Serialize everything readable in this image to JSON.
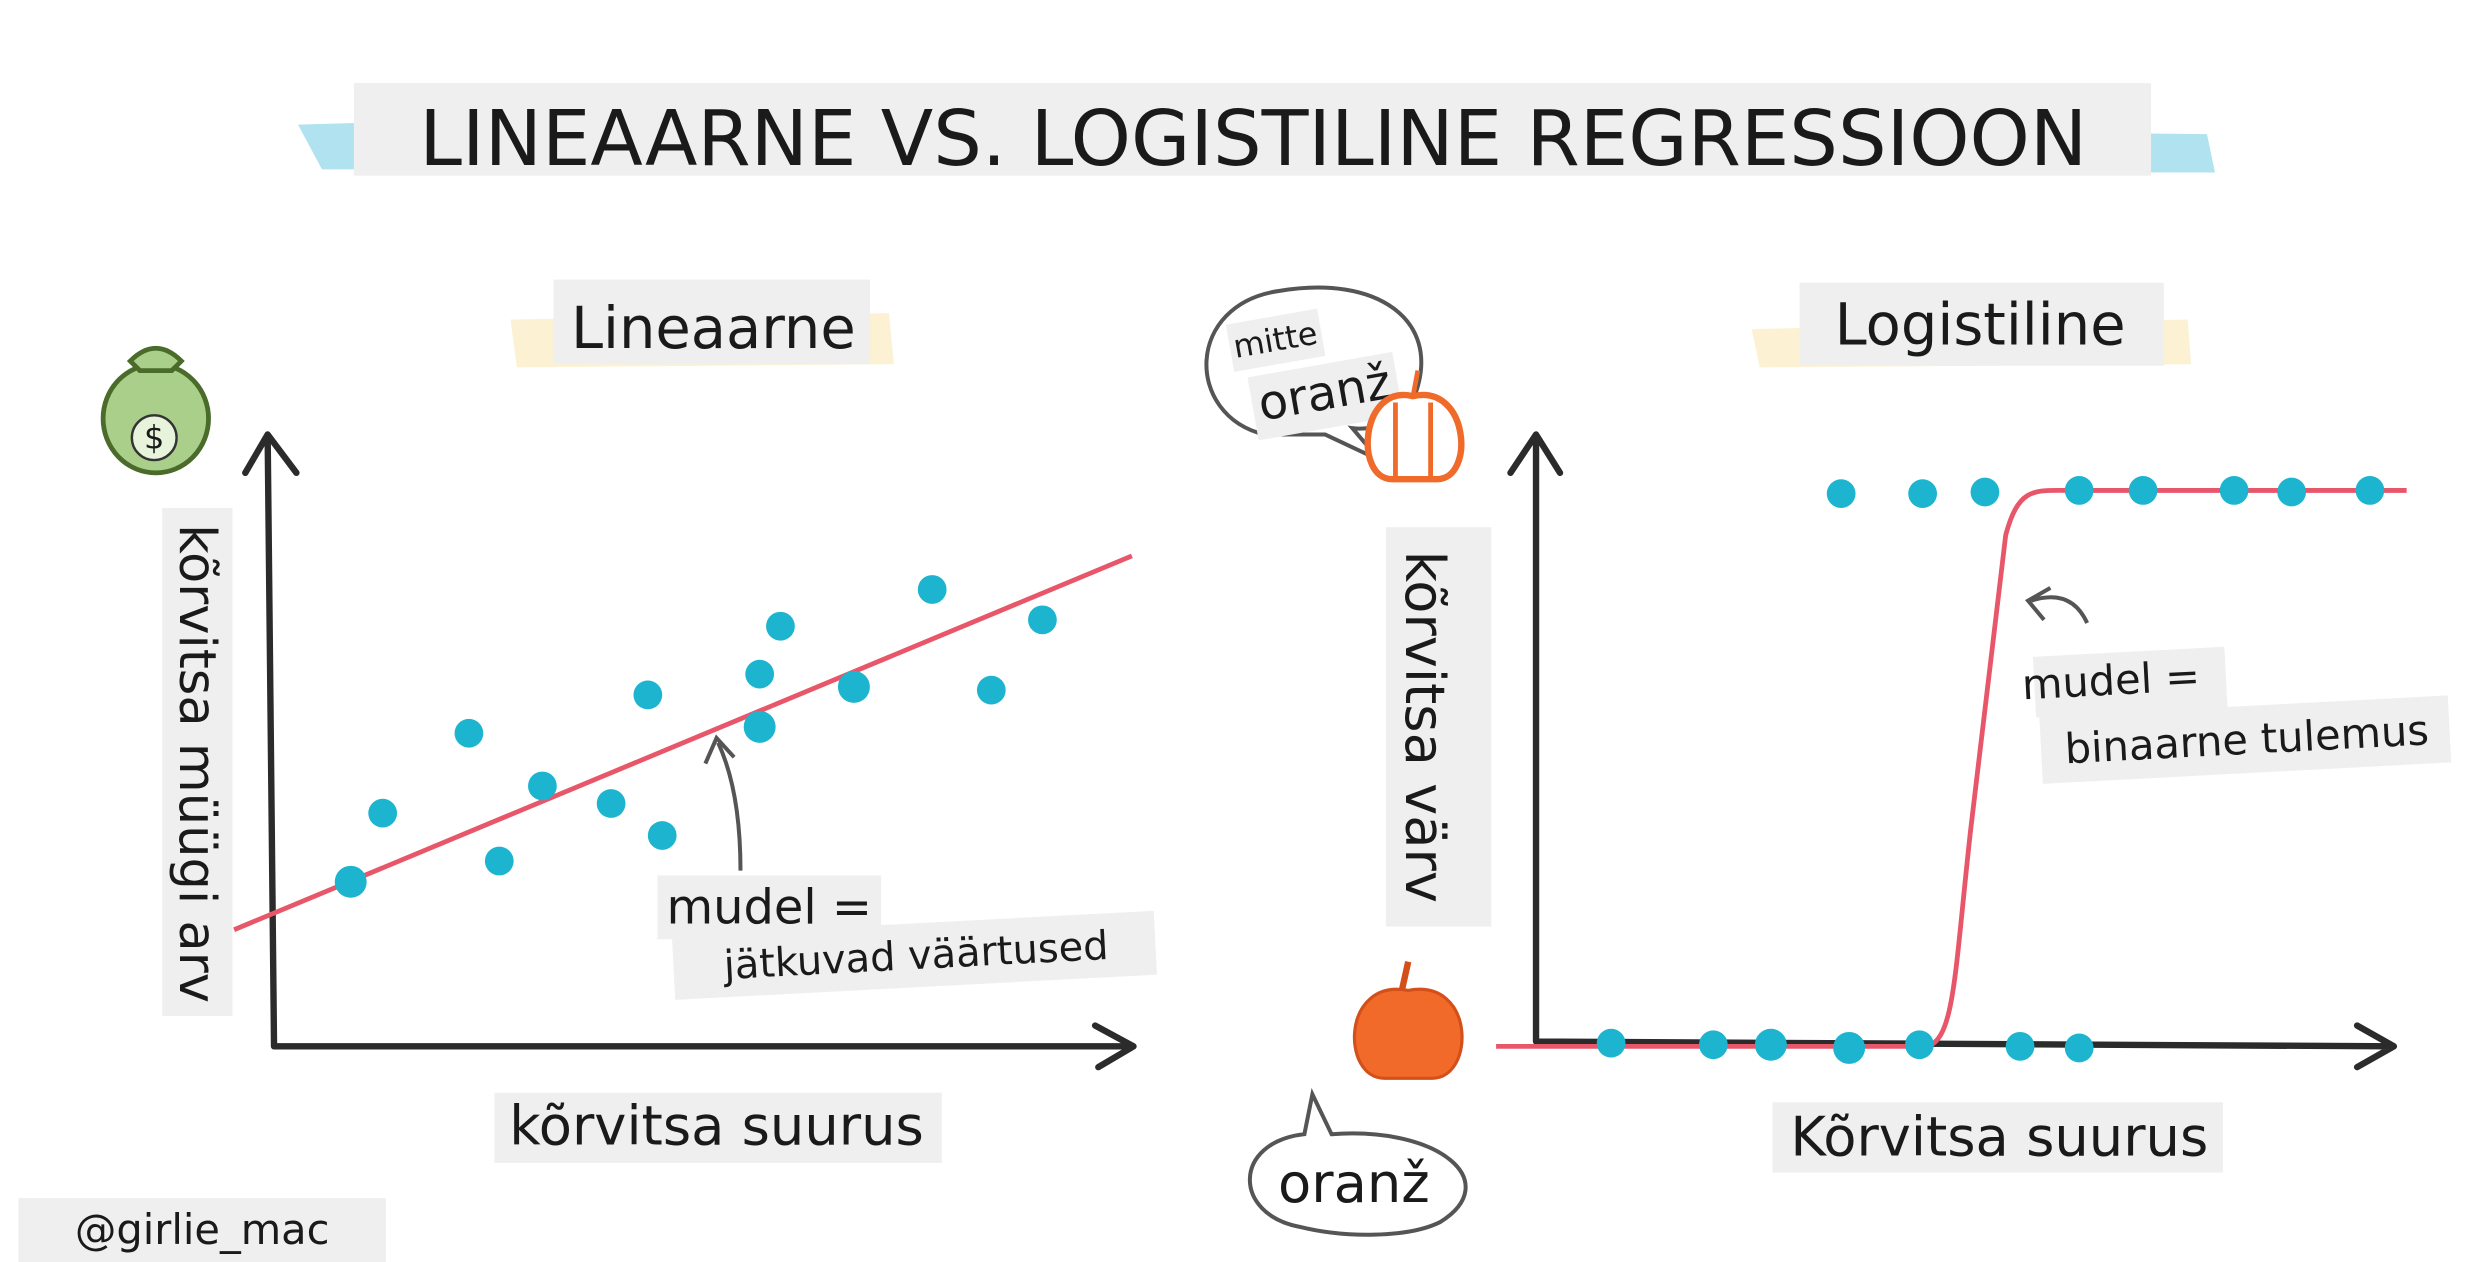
{
  "header": {
    "title": "LINEAARNE VS. LOGISTILINE REGRESSIOON"
  },
  "linear": {
    "title": "Lineaarne",
    "icon_label": "$",
    "y_label": "kõrvitsa müügi arv",
    "x_label": "kõrvitsa suurus",
    "model_label": "mudel =",
    "model_desc": "jätkuvad väärtused"
  },
  "logistic": {
    "title": "Logistiline",
    "top_bubble_line1": "mitte",
    "top_bubble_line2": "oranž",
    "y_label": "kõrvitsa värv",
    "bottom_bubble": "oranž",
    "x_label": "Kõrvitsa suurus",
    "model_label": "mudel =",
    "model_desc": "binaarne tulemus"
  },
  "footer": {
    "credit": "@girlie_mac"
  }
}
